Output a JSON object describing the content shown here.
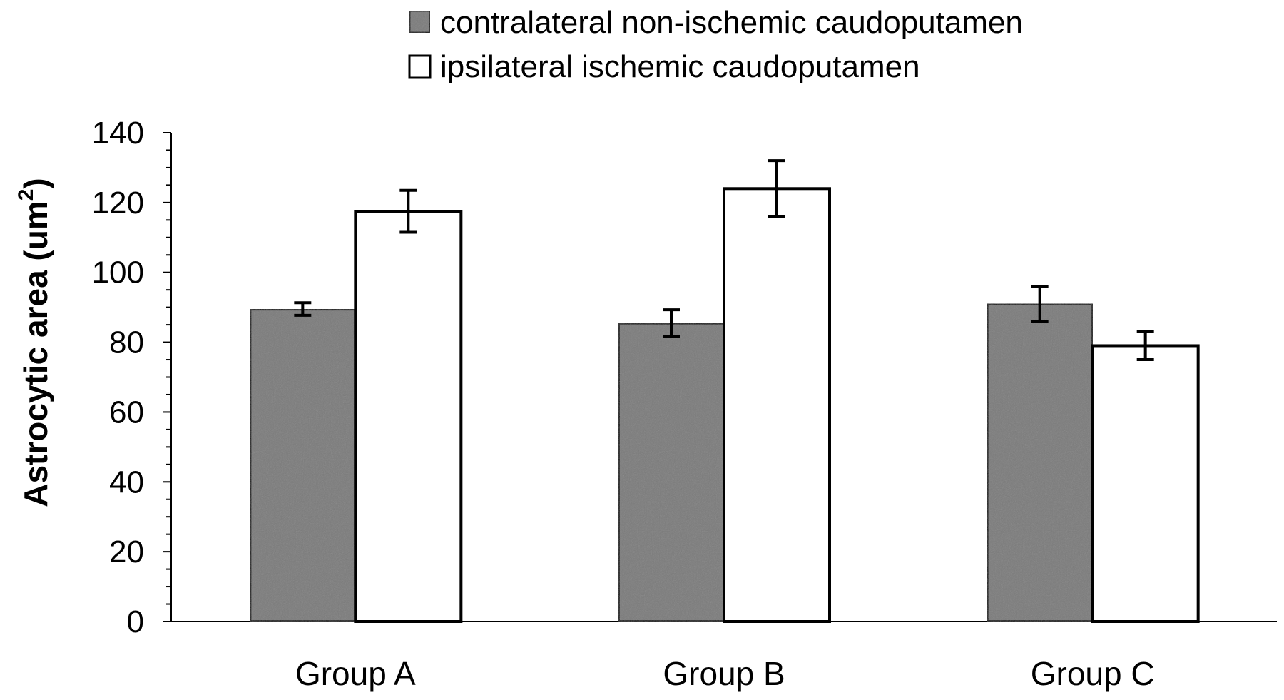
{
  "chart_data": {
    "type": "bar",
    "title": "",
    "xlabel": "",
    "ylabel": "Astrocytic area (um",
    "ylabel_superscript": "2",
    "ylabel_suffix": ")",
    "categories": [
      "Group A",
      "Group B",
      "Group C"
    ],
    "ylim": [
      0,
      140
    ],
    "yticks": [
      0,
      20,
      40,
      60,
      80,
      100,
      120,
      140
    ],
    "ytick_labels": [
      "0",
      "20",
      "40",
      "60",
      "80",
      "100",
      "120",
      "140"
    ],
    "grid": false,
    "legend_position": "top",
    "series": [
      {
        "name": "contralateral non-ischemic caudoputamen",
        "values": [
          89.5,
          85.5,
          91
        ],
        "errors": [
          1.8,
          3.8,
          5
        ],
        "color": "#7a7a7a"
      },
      {
        "name": "ipsilateral ischemic caudoputamen",
        "values": [
          117.5,
          124,
          79
        ],
        "errors": [
          6,
          8,
          4
        ],
        "color": "#ffffff"
      }
    ]
  }
}
